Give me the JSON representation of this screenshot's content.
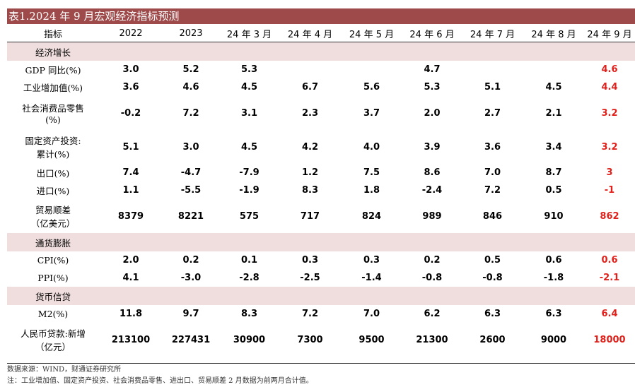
{
  "title": "表1.2024 年 9 月宏观经济指标预测",
  "columns": [
    "指标",
    "2022",
    "2023",
    "24 年 3 月",
    "24 年 4 月",
    "24 年 5 月",
    "24 年 6 月",
    "24 年 7 月",
    "24 年 8 月",
    "24 年 9 月"
  ],
  "sections": [
    {
      "name": "经济增长",
      "rows": [
        {
          "label": [
            "GDP 同比(%)"
          ],
          "values": [
            "3.0",
            "5.2",
            "5.3",
            "",
            "",
            "4.7",
            "",
            "",
            "4.6"
          ]
        },
        {
          "label": [
            "工业增加值(%)"
          ],
          "values": [
            "3.6",
            "4.6",
            "4.5",
            "6.7",
            "5.6",
            "5.3",
            "5.1",
            "4.5",
            "4.4"
          ]
        },
        {
          "label": [
            "社会消费品零售",
            "(%)"
          ],
          "values": [
            "-0.2",
            "7.2",
            "3.1",
            "2.3",
            "3.7",
            "2.0",
            "2.7",
            "2.1",
            "3.2"
          ]
        },
        {
          "label": [
            "固定资产投资:",
            "累计(%)"
          ],
          "values": [
            "5.1",
            "3.0",
            "4.5",
            "4.2",
            "4.0",
            "3.9",
            "3.6",
            "3.4",
            "3.2"
          ]
        },
        {
          "label": [
            "出口(%)"
          ],
          "values": [
            "7.4",
            "-4.7",
            "-7.9",
            "1.2",
            "7.5",
            "8.6",
            "7.0",
            "8.7",
            "3"
          ]
        },
        {
          "label": [
            "进口(%)"
          ],
          "values": [
            "1.1",
            "-5.5",
            "-1.9",
            "8.3",
            "1.8",
            "-2.4",
            "7.2",
            "0.5",
            "-1"
          ]
        },
        {
          "label": [
            "贸易顺差",
            "（亿美元）"
          ],
          "values": [
            "8379",
            "8221",
            "575",
            "717",
            "824",
            "989",
            "846",
            "910",
            "862"
          ]
        }
      ]
    },
    {
      "name": "通货膨胀",
      "rows": [
        {
          "label": [
            "CPI(%)"
          ],
          "values": [
            "2.0",
            "0.2",
            "0.1",
            "0.3",
            "0.3",
            "0.2",
            "0.5",
            "0.6",
            "0.6"
          ]
        },
        {
          "label": [
            "PPI(%)"
          ],
          "values": [
            "4.1",
            "-3.0",
            "-2.8",
            "-2.5",
            "-1.4",
            "-0.8",
            "-0.8",
            "-1.8",
            "-2.1"
          ]
        }
      ]
    },
    {
      "name": "货币信贷",
      "rows": [
        {
          "label": [
            "M2(%)"
          ],
          "values": [
            "11.8",
            "9.7",
            "8.3",
            "7.2",
            "7.0",
            "6.2",
            "6.3",
            "6.3",
            "6.4"
          ]
        },
        {
          "label": [
            "人民币贷款:新增",
            "（亿元）"
          ],
          "values": [
            "213100",
            "227431",
            "30900",
            "7300",
            "9500",
            "21300",
            "2600",
            "9000",
            "18000"
          ]
        }
      ]
    }
  ],
  "highlight_color": "#e0201a",
  "notes": [
    "数据来源：WIND，财通证券研究所",
    "注：工业增加值、固定资产投资、社会消费品零售、进出口、贸易顺差 2 月数据为前两月合计值。"
  ]
}
